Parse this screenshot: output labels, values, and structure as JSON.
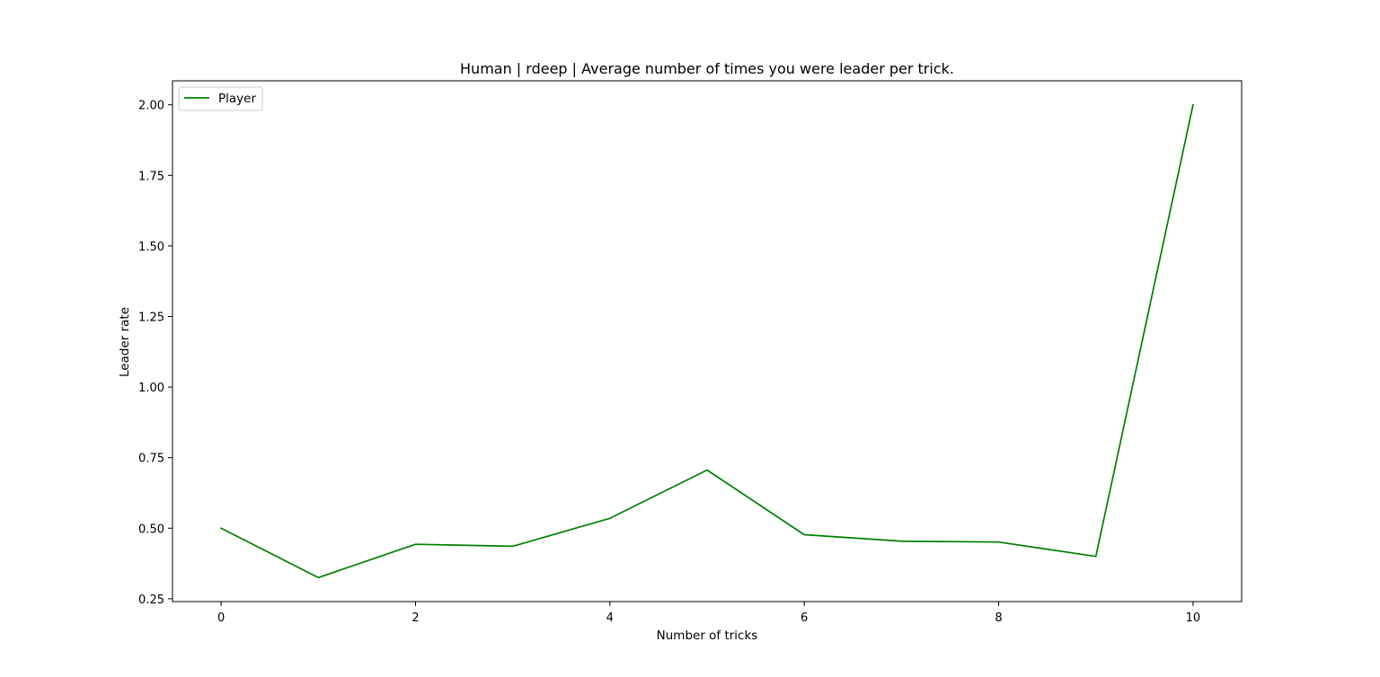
{
  "chart_data": {
    "type": "line",
    "title": "Human | rdeep | Average number of times you were leader per trick.",
    "xlabel": "Number of tricks",
    "ylabel": "Leader rate",
    "x": [
      0,
      1,
      2,
      3,
      4,
      5,
      6,
      7,
      8,
      9,
      10
    ],
    "xlim": [
      -0.5,
      10.5
    ],
    "ylim": [
      0.24,
      2.085
    ],
    "xticks": [
      0,
      2,
      4,
      6,
      8,
      10
    ],
    "xtick_labels": [
      "0",
      "2",
      "4",
      "6",
      "8",
      "10"
    ],
    "yticks": [
      0.25,
      0.5,
      0.75,
      1.0,
      1.25,
      1.5,
      1.75,
      2.0
    ],
    "ytick_labels": [
      "0.25",
      "0.50",
      "0.75",
      "1.00",
      "1.25",
      "1.50",
      "1.75",
      "2.00"
    ],
    "grid": false,
    "legend_position": "top-left",
    "series": [
      {
        "name": "Player",
        "color": "#008000",
        "values": [
          0.5,
          0.325,
          0.443,
          0.436,
          0.535,
          0.706,
          0.477,
          0.454,
          0.451,
          0.4,
          2.0
        ]
      }
    ]
  }
}
